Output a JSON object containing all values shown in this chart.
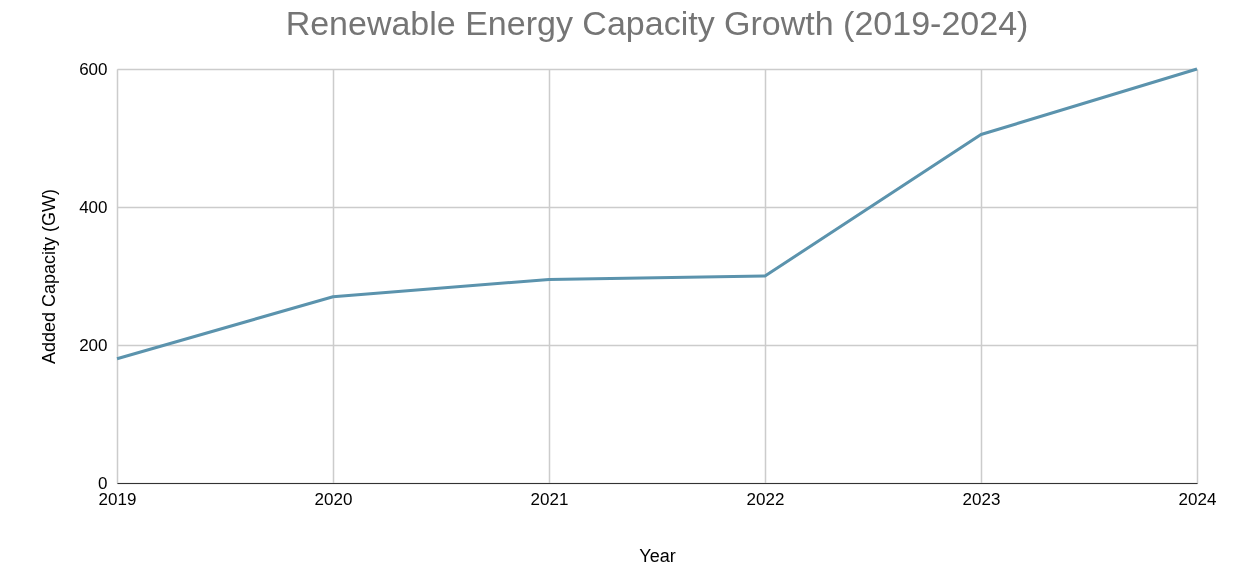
{
  "chart_data": {
    "type": "line",
    "title": "Renewable Energy Capacity Growth (2019-2024)",
    "xlabel": "Year",
    "ylabel": "Added Capacity (GW)",
    "x": [
      2019,
      2020,
      2021,
      2022,
      2023,
      2024
    ],
    "series": [
      {
        "color": "#5b93ad",
        "values": [
          180,
          270,
          295,
          300,
          505,
          600
        ]
      }
    ],
    "xlim": [
      2019,
      2024
    ],
    "xticks": [
      2019,
      2020,
      2021,
      2022,
      2023,
      2024
    ],
    "ylim": [
      0,
      600
    ],
    "yticks": [
      0,
      200,
      400,
      600
    ],
    "grid": true,
    "marker": "none",
    "line_style": "solid"
  }
}
